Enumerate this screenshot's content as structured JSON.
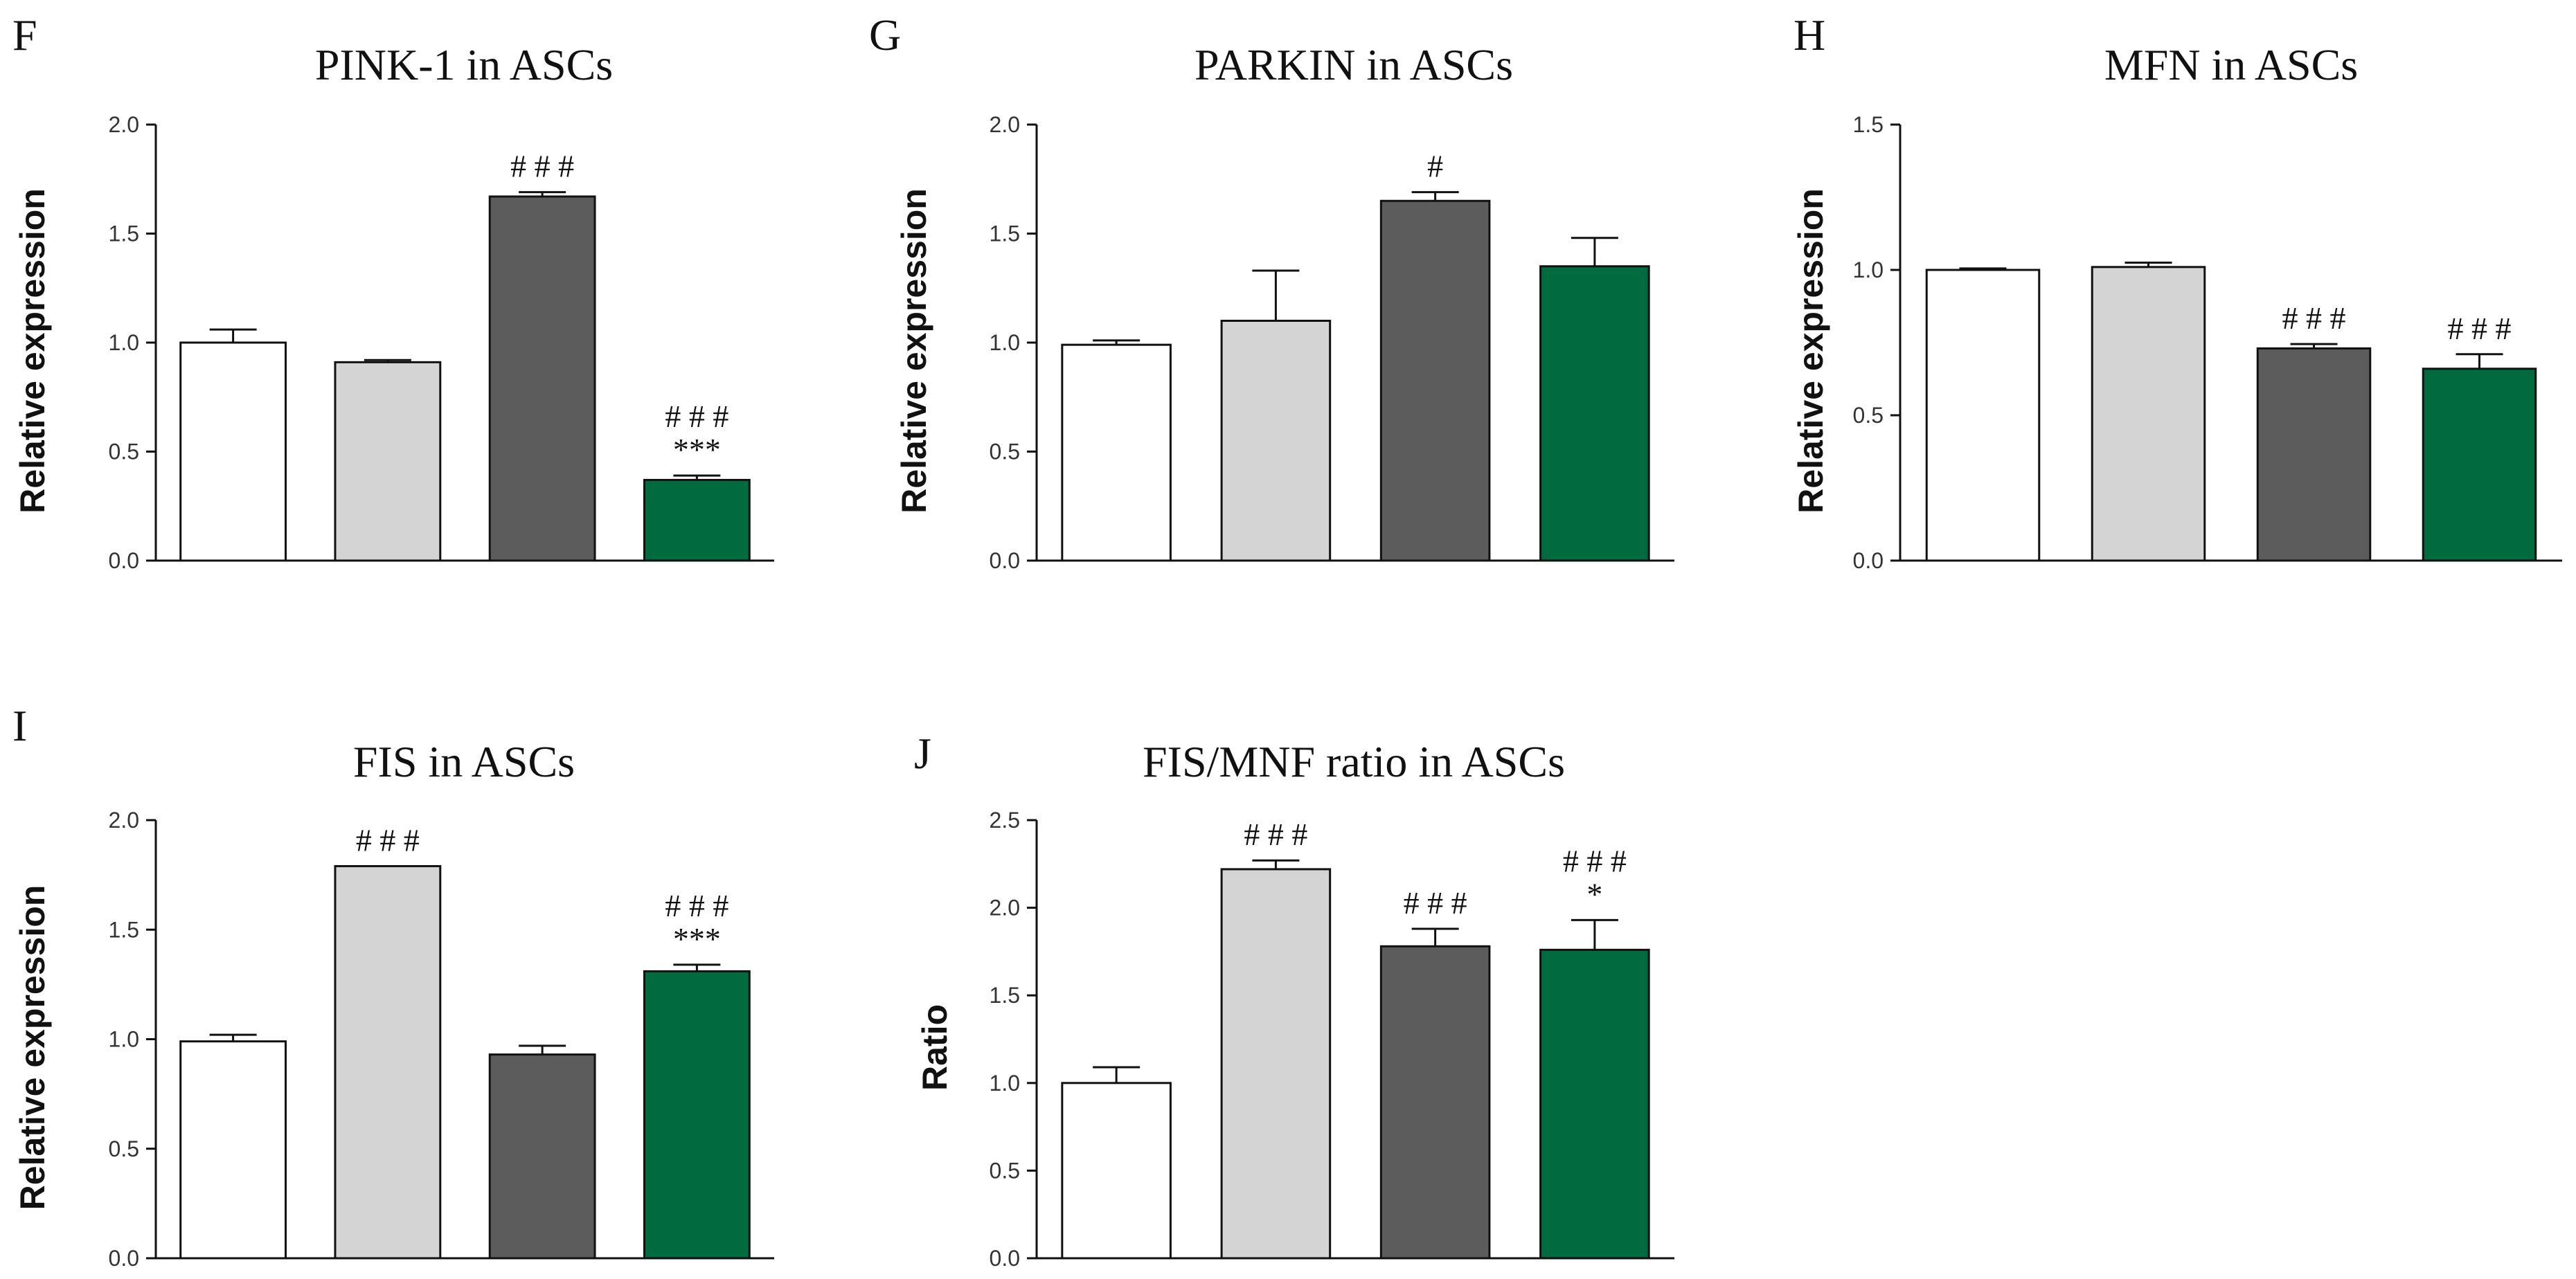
{
  "figure_name": "ASC gene expression panels",
  "group_colors": [
    "#ffffff",
    "#d4d4d4",
    "#5c5c5c",
    "#006b3e"
  ],
  "edge_color": "#111111",
  "chart_data": [
    {
      "panel": "F",
      "type": "bar",
      "title": "PINK-1 in ASCs",
      "xlabel": "",
      "ylabel": "Relative expression",
      "ylim": [
        0,
        2.0
      ],
      "yticks": [
        0.0,
        0.5,
        1.0,
        1.5,
        2.0
      ],
      "ytick_labels": [
        "0.0",
        "0.5",
        "1.0",
        "1.5",
        "2.0"
      ],
      "values": [
        1.0,
        0.91,
        1.67,
        0.37
      ],
      "errors": [
        0.06,
        0.01,
        0.02,
        0.02
      ],
      "annotations": [
        "",
        "",
        "# # #",
        "# # #\n***"
      ]
    },
    {
      "panel": "G",
      "type": "bar",
      "title": "PARKIN in ASCs",
      "xlabel": "",
      "ylabel": "Relative expression",
      "ylim": [
        0,
        2.0
      ],
      "yticks": [
        0.0,
        0.5,
        1.0,
        1.5,
        2.0
      ],
      "ytick_labels": [
        "0.0",
        "0.5",
        "1.0",
        "1.5",
        "2.0"
      ],
      "values": [
        0.99,
        1.1,
        1.65,
        1.35
      ],
      "errors": [
        0.02,
        0.23,
        0.04,
        0.13
      ],
      "annotations": [
        "",
        "",
        "#",
        ""
      ]
    },
    {
      "panel": "H",
      "type": "bar",
      "title": "MFN in ASCs",
      "xlabel": "",
      "ylabel": "Relative expression",
      "ylim": [
        0,
        1.5
      ],
      "yticks": [
        0.0,
        0.5,
        1.0,
        1.5
      ],
      "ytick_labels": [
        "0.0",
        "0.5",
        "1.0",
        "1.5"
      ],
      "values": [
        1.0,
        1.01,
        0.73,
        0.66
      ],
      "errors": [
        0.005,
        0.015,
        0.015,
        0.05
      ],
      "annotations": [
        "",
        "",
        "# # #",
        "# # #"
      ]
    },
    {
      "panel": "I",
      "type": "bar",
      "title": "FIS in ASCs",
      "xlabel": "",
      "ylabel": "Relative expression",
      "ylim": [
        0,
        2.0
      ],
      "yticks": [
        0.0,
        0.5,
        1.0,
        1.5,
        2.0
      ],
      "ytick_labels": [
        "0.0",
        "0.5",
        "1.0",
        "1.5",
        "2.0"
      ],
      "values": [
        0.99,
        1.79,
        0.93,
        1.31
      ],
      "errors": [
        0.03,
        0.0,
        0.04,
        0.03
      ],
      "annotations": [
        "",
        "# # #",
        "",
        "# # #\n***"
      ]
    },
    {
      "panel": "J",
      "type": "bar",
      "title": "FIS/MNF ratio in ASCs",
      "xlabel": "",
      "ylabel": "Ratio",
      "ylim": [
        0,
        2.5
      ],
      "yticks": [
        0.0,
        0.5,
        1.0,
        1.5,
        2.0,
        2.5
      ],
      "ytick_labels": [
        "0.0",
        "0.5",
        "1.0",
        "1.5",
        "2.0",
        "2.5"
      ],
      "values": [
        1.0,
        2.22,
        1.78,
        1.76
      ],
      "errors": [
        0.09,
        0.05,
        0.1,
        0.17
      ],
      "annotations": [
        "",
        "# # #",
        "# # #",
        "# # #\n*"
      ]
    }
  ]
}
